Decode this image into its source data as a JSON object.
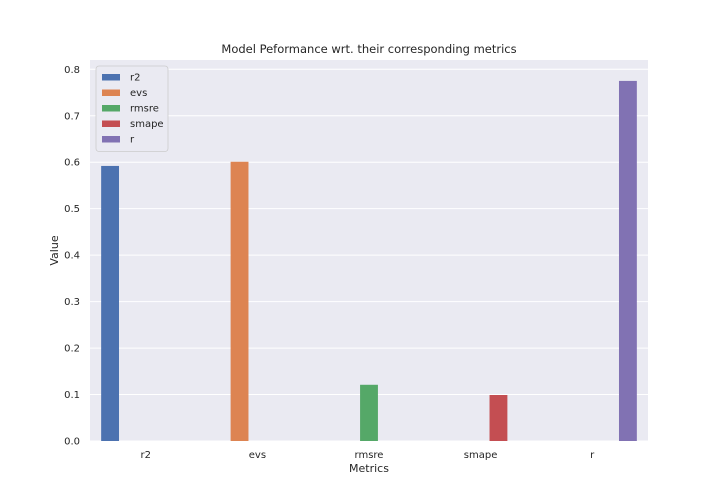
{
  "chart_data": {
    "type": "bar",
    "title": "Model Peformance wrt. their corresponding metrics",
    "xlabel": "Metrics",
    "ylabel": "Value",
    "categories": [
      "r2",
      "evs",
      "rmsre",
      "smape",
      "r"
    ],
    "series": [
      {
        "name": "r2",
        "values": [
          0.592,
          null,
          null,
          null,
          null
        ]
      },
      {
        "name": "evs",
        "values": [
          null,
          0.601,
          null,
          null,
          null
        ]
      },
      {
        "name": "rmsre",
        "values": [
          null,
          null,
          0.121,
          null,
          null
        ]
      },
      {
        "name": "smape",
        "values": [
          null,
          null,
          null,
          0.099,
          null
        ]
      },
      {
        "name": "r",
        "values": [
          null,
          null,
          null,
          null,
          0.775
        ]
      }
    ],
    "colors": [
      "#4c72b0",
      "#dd8452",
      "#55a868",
      "#c44e52",
      "#8172b3"
    ],
    "ylim": [
      0,
      0.82
    ],
    "yticks": [
      0.0,
      0.1,
      0.2,
      0.3,
      0.4,
      0.5,
      0.6,
      0.7,
      0.8
    ],
    "grid": true,
    "legend_position": "top-left",
    "background": "#eaeaf2"
  }
}
